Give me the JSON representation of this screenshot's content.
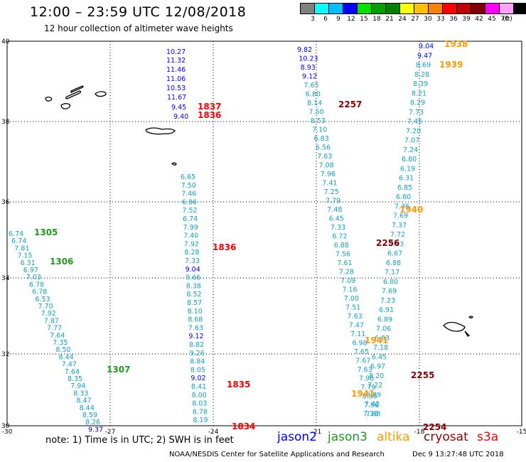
{
  "header": {
    "title": "12:00 – 23:59 UTC 12/08/2018",
    "subtitle": "12 hour collection of altimeter wave heights"
  },
  "color_scale": {
    "labels": [
      "3",
      "6",
      "9",
      "12",
      "15",
      "18",
      "21",
      "24",
      "27",
      "30",
      "33",
      "36",
      "39",
      "42",
      "45",
      "70",
      "(ft)"
    ],
    "colors": [
      "#808080",
      "#00ffff",
      "#00c0ff",
      "#0000ff",
      "#00e000",
      "#00a000",
      "#008000",
      "#ffff00",
      "#ffc000",
      "#ff8000",
      "#ff0000",
      "#c00000",
      "#800000",
      "#ff00ff",
      "#ffa0ff",
      "#000000"
    ]
  },
  "axes": {
    "lat_labels": [
      "40",
      "38",
      "36",
      "34",
      "32",
      "30"
    ],
    "lon_labels": [
      "-30",
      "-27",
      "-24",
      "-21",
      "-18",
      "-15"
    ]
  },
  "satellites": {
    "jason2": "#0000ff",
    "jason3": "#1c9b1c",
    "altika": "#ff9b00",
    "cryosat": "#8b0000",
    "s3a": "#ff0000"
  },
  "tracks": [
    {
      "sat": "s3a",
      "values": [
        "10.27",
        "11.32",
        "11.46",
        "11.06",
        "10.53",
        "11.67",
        "9.45",
        "9.40"
      ],
      "colors": [
        "jason2",
        "jason2",
        "jason2",
        "jason2",
        "jason2",
        "jason2",
        "jason2",
        "jason2"
      ]
    },
    {
      "sat": "s3a",
      "values": [
        "6.65",
        "7.50",
        "7.46",
        "6.86",
        "7.52",
        "6.74",
        "7.99",
        "7.40",
        "7.92",
        "8.28",
        "7.33",
        "9.04",
        "8.66",
        "8.38",
        "8.52",
        "8.57",
        "8.10",
        "8.68",
        "7.63",
        "9.12",
        "8.82",
        "9.26",
        "8.84",
        "8.05",
        "9.02",
        "8.41",
        "8.00",
        "8.03",
        "8.78",
        "8.19"
      ]
    },
    {
      "sat": "jason3",
      "values": [
        "6.74",
        "6.74",
        "7.81",
        "7.15",
        "6.31",
        "6.97",
        "7.03",
        "6.78",
        "6.78",
        "6.53",
        "7.70",
        "7.92",
        "7.87",
        "7.77",
        "7.64",
        "7.35",
        "8.50",
        "8.44",
        "7.47",
        "7.64",
        "8.35",
        "7.94",
        "8.33",
        "8.47",
        "8.44",
        "8.59",
        "8.26",
        "9.37"
      ]
    },
    {
      "sat": "cryosat",
      "values": [
        "9.82",
        "10.23",
        "8.93",
        "9.12",
        "7.65",
        "6.80",
        "8.14",
        "7.50",
        "8.53",
        "7.10",
        "6.83",
        "6.56",
        "7.63",
        "7.08",
        "7.96",
        "7.41",
        "7.25",
        "7.79",
        "7.48",
        "6.45",
        "7.33",
        "6.72",
        "6.88",
        "7.56",
        "7.61",
        "7.28",
        "7.09",
        "7.16",
        "7.00",
        "7.51",
        "7.63",
        "7.47",
        "7.11",
        "6.98",
        "7.65",
        "7.67",
        "7.63",
        "7.96",
        "7.79",
        "8.36",
        "7.96",
        "7.68"
      ]
    },
    {
      "sat": "altika",
      "values": [
        "9.04",
        "9.47",
        "8.69",
        "8.28",
        "8.39",
        "8.21",
        "8.29",
        "7.73",
        "7.45",
        "7.20",
        "7.07",
        "7.24",
        "6.80",
        "6.19",
        "6.31",
        "6.85",
        "6.60",
        "7.36",
        "7.69",
        "7.37",
        "7.72",
        "6.93",
        "6.67",
        "6.88",
        "7.17",
        "6.80",
        "7.69",
        "7.23",
        "6.91",
        "6.89",
        "7.06",
        "6.83",
        "7.18",
        "6.45",
        "6.97",
        "8.20",
        "7.22",
        "6.89",
        "7.42",
        "7.16"
      ]
    }
  ],
  "time_labels": [
    {
      "text": "1837",
      "sat": "s3a"
    },
    {
      "text": "1836",
      "sat": "s3a"
    },
    {
      "text": "1836",
      "sat": "s3a"
    },
    {
      "text": "1835",
      "sat": "s3a"
    },
    {
      "text": "1834",
      "sat": "s3a"
    },
    {
      "text": "1305",
      "sat": "jason3"
    },
    {
      "text": "1306",
      "sat": "jason3"
    },
    {
      "text": "1307",
      "sat": "jason3"
    },
    {
      "text": "2257",
      "sat": "cryosat"
    },
    {
      "text": "2256",
      "sat": "cryosat"
    },
    {
      "text": "2255",
      "sat": "cryosat"
    },
    {
      "text": "2254",
      "sat": "cryosat"
    },
    {
      "text": "1938",
      "sat": "altika"
    },
    {
      "text": "1939",
      "sat": "altika"
    },
    {
      "text": "1940",
      "sat": "altika"
    },
    {
      "text": "1941",
      "sat": "altika"
    },
    {
      "text": "1941",
      "sat": "altika"
    }
  ],
  "legend": {
    "jason2": "jason2",
    "jason3": "jason3",
    "altika": "altika",
    "cryosat": "cryosat",
    "s3a": "s3a"
  },
  "note": "note: 1) Time is in UTC; 2) SWH is in feet",
  "footer": {
    "credit": "NOAA/NESDIS Center for Satellite Applications and Research",
    "timestamp": "Dec  9 13:27:48 UTC 2018"
  }
}
